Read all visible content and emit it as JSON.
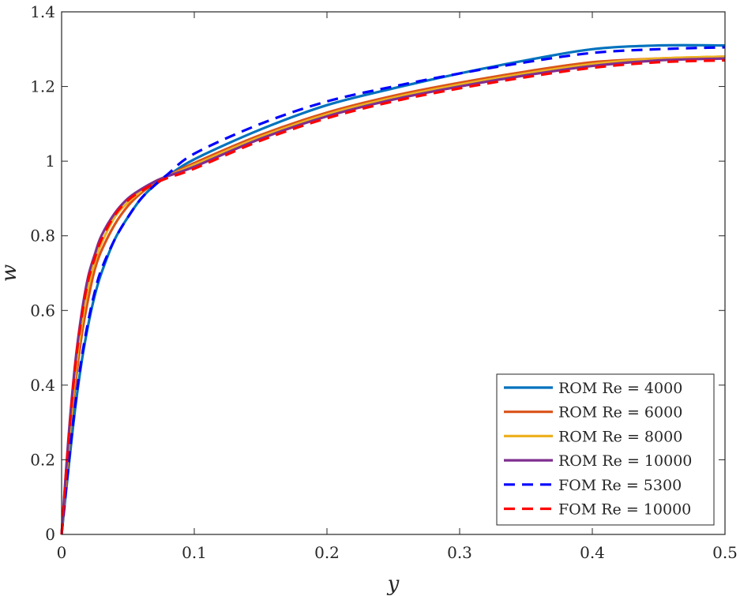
{
  "chart_data": {
    "type": "line",
    "title": "",
    "xlabel": "y",
    "ylabel": "w",
    "xlim": [
      0,
      0.5
    ],
    "ylim": [
      0,
      1.4
    ],
    "xticks": [
      0,
      0.1,
      0.2,
      0.3,
      0.4,
      0.5
    ],
    "xtick_labels": [
      "0",
      "0.1",
      "0.2",
      "0.3",
      "0.4",
      "0.5"
    ],
    "yticks": [
      0,
      0.2,
      0.4,
      0.6,
      0.8,
      1,
      1.2,
      1.4
    ],
    "ytick_labels": [
      "0",
      "0.2",
      "0.4",
      "0.6",
      "0.8",
      "1",
      "1.2",
      "1.4"
    ],
    "grid": false,
    "legend_placement": "bottom-right",
    "series": [
      {
        "name": "ROM Re = 4000",
        "color": "#0072BD",
        "style": "solid",
        "x": [
          0,
          0.005,
          0.01,
          0.015,
          0.02,
          0.025,
          0.03,
          0.04,
          0.05,
          0.06,
          0.07,
          0.08,
          0.1,
          0.15,
          0.2,
          0.25,
          0.3,
          0.35,
          0.4,
          0.45,
          0.5
        ],
        "y": [
          0,
          0.17,
          0.33,
          0.46,
          0.56,
          0.64,
          0.7,
          0.79,
          0.85,
          0.9,
          0.935,
          0.96,
          1.005,
          1.085,
          1.15,
          1.195,
          1.235,
          1.27,
          1.3,
          1.31,
          1.31
        ]
      },
      {
        "name": "ROM Re = 6000",
        "color": "#D95319",
        "style": "solid",
        "x": [
          0,
          0.005,
          0.01,
          0.015,
          0.02,
          0.025,
          0.03,
          0.04,
          0.05,
          0.06,
          0.07,
          0.08,
          0.1,
          0.15,
          0.2,
          0.25,
          0.3,
          0.35,
          0.4,
          0.45,
          0.5
        ],
        "y": [
          0,
          0.21,
          0.39,
          0.53,
          0.63,
          0.71,
          0.76,
          0.83,
          0.88,
          0.915,
          0.94,
          0.96,
          0.995,
          1.07,
          1.13,
          1.175,
          1.21,
          1.24,
          1.265,
          1.275,
          1.28
        ]
      },
      {
        "name": "ROM Re = 8000",
        "color": "#EDB120",
        "style": "solid",
        "x": [
          0,
          0.005,
          0.01,
          0.015,
          0.02,
          0.025,
          0.03,
          0.04,
          0.05,
          0.06,
          0.07,
          0.08,
          0.1,
          0.15,
          0.2,
          0.25,
          0.3,
          0.35,
          0.4,
          0.45,
          0.5
        ],
        "y": [
          0,
          0.23,
          0.42,
          0.56,
          0.66,
          0.73,
          0.78,
          0.85,
          0.89,
          0.92,
          0.945,
          0.96,
          0.99,
          1.065,
          1.125,
          1.17,
          1.205,
          1.235,
          1.26,
          1.275,
          1.28
        ]
      },
      {
        "name": "ROM Re = 10000",
        "color": "#7E2F8E",
        "style": "solid",
        "x": [
          0,
          0.005,
          0.01,
          0.015,
          0.02,
          0.025,
          0.03,
          0.04,
          0.05,
          0.06,
          0.07,
          0.08,
          0.1,
          0.15,
          0.2,
          0.25,
          0.3,
          0.35,
          0.4,
          0.45,
          0.5
        ],
        "y": [
          0,
          0.25,
          0.45,
          0.59,
          0.69,
          0.75,
          0.8,
          0.86,
          0.9,
          0.925,
          0.945,
          0.96,
          0.985,
          1.06,
          1.12,
          1.165,
          1.2,
          1.23,
          1.255,
          1.27,
          1.275
        ]
      },
      {
        "name": "FOM Re = 5300",
        "color": "#0000FF",
        "style": "dashed",
        "x": [
          0,
          0.005,
          0.01,
          0.015,
          0.02,
          0.025,
          0.03,
          0.04,
          0.05,
          0.06,
          0.07,
          0.08,
          0.1,
          0.15,
          0.2,
          0.25,
          0.3,
          0.35,
          0.4,
          0.45,
          0.5
        ],
        "y": [
          0,
          0.18,
          0.34,
          0.47,
          0.57,
          0.65,
          0.71,
          0.79,
          0.85,
          0.9,
          0.935,
          0.965,
          1.02,
          1.1,
          1.16,
          1.2,
          1.235,
          1.265,
          1.29,
          1.3,
          1.305
        ]
      },
      {
        "name": "FOM Re = 10000",
        "color": "#FF0000",
        "style": "dashed",
        "x": [
          0,
          0.005,
          0.01,
          0.015,
          0.02,
          0.025,
          0.03,
          0.04,
          0.05,
          0.06,
          0.07,
          0.08,
          0.1,
          0.15,
          0.2,
          0.25,
          0.3,
          0.35,
          0.4,
          0.45,
          0.5
        ],
        "y": [
          0,
          0.24,
          0.44,
          0.58,
          0.68,
          0.74,
          0.79,
          0.855,
          0.895,
          0.92,
          0.94,
          0.955,
          0.98,
          1.055,
          1.115,
          1.16,
          1.195,
          1.225,
          1.25,
          1.265,
          1.27
        ]
      }
    ]
  }
}
